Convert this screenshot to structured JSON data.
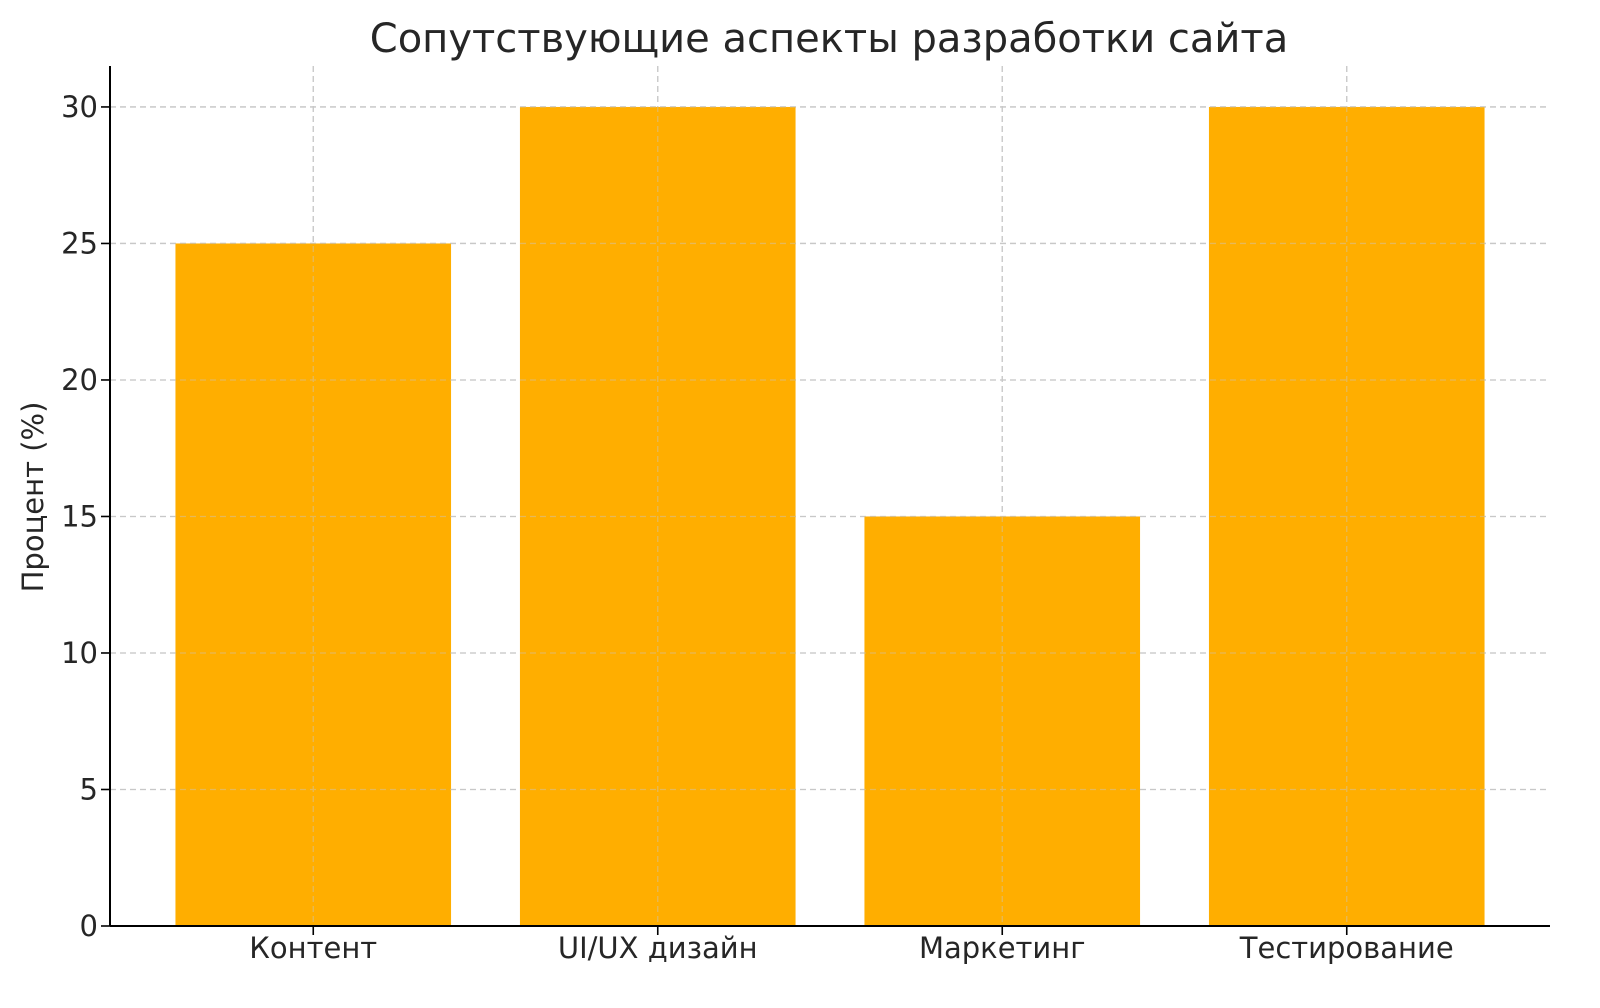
{
  "chart_data": {
    "type": "bar",
    "title": "Сопутствующие аспекты разработки сайта",
    "xlabel": "",
    "ylabel": "Процент (%)",
    "categories": [
      "Контент",
      "UI/UX дизайн",
      "Маркетинг",
      "Тестирование"
    ],
    "values": [
      25,
      30,
      15,
      30
    ],
    "ylim": [
      0,
      31.5
    ],
    "yticks": [
      0,
      5,
      10,
      15,
      20,
      25,
      30
    ],
    "grid": true,
    "grid_style": "dashed",
    "bar_color": "#FFAE00",
    "legend": "none"
  }
}
